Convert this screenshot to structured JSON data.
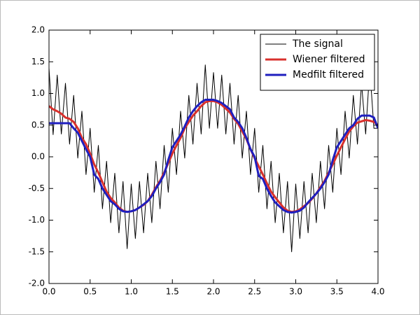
{
  "chart_data": {
    "type": "line",
    "x": [
      0,
      0.05,
      0.1,
      0.15,
      0.2,
      0.25,
      0.3,
      0.35,
      0.4,
      0.45,
      0.5,
      0.55,
      0.6,
      0.65,
      0.7,
      0.75,
      0.8,
      0.85,
      0.9,
      0.95,
      1,
      1.05,
      1.1,
      1.15,
      1.2,
      1.25,
      1.3,
      1.35,
      1.4,
      1.45,
      1.5,
      1.55,
      1.6,
      1.65,
      1.7,
      1.75,
      1.8,
      1.85,
      1.9,
      1.95,
      2,
      2.05,
      2.1,
      2.15,
      2.2,
      2.25,
      2.3,
      2.35,
      2.4,
      2.45,
      2.5,
      2.55,
      2.6,
      2.65,
      2.7,
      2.75,
      2.8,
      2.85,
      2.9,
      2.95,
      3,
      3.05,
      3.1,
      3.15,
      3.2,
      3.25,
      3.3,
      3.35,
      3.4,
      3.45,
      3.5,
      3.55,
      3.6,
      3.65,
      3.7,
      3.75,
      3.8,
      3.85,
      3.9,
      3.95,
      4
    ],
    "series": [
      {
        "name": "The signal",
        "color": "#000000",
        "width": 1,
        "values": [
          1.4,
          0.35,
          1.29,
          0.36,
          1.16,
          0.2,
          0.97,
          -0.02,
          0.72,
          -0.28,
          0.45,
          -0.56,
          0.18,
          -0.82,
          -0.07,
          -1.04,
          -0.26,
          -1.2,
          -0.39,
          -1.45,
          -0.43,
          -1.29,
          -0.39,
          -1.2,
          -0.26,
          -1.04,
          -0.07,
          -0.82,
          0.18,
          -0.56,
          0.45,
          -0.28,
          0.72,
          -0.02,
          0.97,
          0.2,
          1.16,
          0.36,
          1.45,
          0.45,
          1.33,
          0.45,
          1.29,
          0.36,
          1.16,
          0.2,
          0.97,
          -0.02,
          0.72,
          -0.28,
          0.45,
          -0.56,
          0.18,
          -0.82,
          -0.07,
          -1.04,
          -0.26,
          -1.2,
          -0.39,
          -1.5,
          -0.43,
          -1.29,
          -0.39,
          -1.2,
          -0.26,
          -1.04,
          -0.07,
          -0.82,
          0.18,
          -0.56,
          0.45,
          -0.28,
          0.72,
          -0.02,
          0.97,
          0.2,
          1.16,
          0.36,
          1.4,
          0.45,
          0.45
        ]
      },
      {
        "name": "Wiener filtered",
        "color": "#d9302c",
        "width": 3,
        "values": [
          0.8,
          0.75,
          0.72,
          0.68,
          0.62,
          0.6,
          0.55,
          0.45,
          0.3,
          0.2,
          0.05,
          -0.12,
          -0.25,
          -0.4,
          -0.55,
          -0.65,
          -0.72,
          -0.8,
          -0.85,
          -0.87,
          -0.86,
          -0.84,
          -0.8,
          -0.76,
          -0.7,
          -0.6,
          -0.48,
          -0.38,
          -0.25,
          -0.1,
          0.05,
          0.18,
          0.3,
          0.45,
          0.55,
          0.65,
          0.72,
          0.8,
          0.86,
          0.88,
          0.88,
          0.86,
          0.82,
          0.76,
          0.7,
          0.6,
          0.52,
          0.4,
          0.28,
          0.12,
          -0.02,
          -0.15,
          -0.28,
          -0.42,
          -0.55,
          -0.64,
          -0.72,
          -0.8,
          -0.85,
          -0.87,
          -0.86,
          -0.83,
          -0.78,
          -0.73,
          -0.66,
          -0.58,
          -0.48,
          -0.38,
          -0.25,
          -0.12,
          0.02,
          0.15,
          0.28,
          0.4,
          0.48,
          0.54,
          0.56,
          0.58,
          0.57,
          0.55,
          0.5
        ]
      },
      {
        "name": "Medfilt filtered",
        "color": "#1f1fbf",
        "width": 3,
        "values": [
          0.53,
          0.53,
          0.53,
          0.53,
          0.53,
          0.53,
          0.45,
          0.38,
          0.25,
          0.12,
          0.0,
          -0.28,
          -0.35,
          -0.5,
          -0.6,
          -0.7,
          -0.75,
          -0.82,
          -0.86,
          -0.87,
          -0.86,
          -0.84,
          -0.8,
          -0.75,
          -0.7,
          -0.62,
          -0.5,
          -0.4,
          -0.28,
          -0.05,
          0.15,
          0.25,
          0.35,
          0.48,
          0.62,
          0.72,
          0.8,
          0.86,
          0.9,
          0.9,
          0.9,
          0.88,
          0.85,
          0.8,
          0.75,
          0.62,
          0.55,
          0.45,
          0.3,
          0.12,
          0.0,
          -0.3,
          -0.35,
          -0.5,
          -0.62,
          -0.72,
          -0.78,
          -0.84,
          -0.87,
          -0.88,
          -0.87,
          -0.85,
          -0.8,
          -0.72,
          -0.65,
          -0.58,
          -0.5,
          -0.4,
          -0.28,
          -0.05,
          0.15,
          0.25,
          0.35,
          0.45,
          0.5,
          0.6,
          0.65,
          0.65,
          0.65,
          0.62,
          0.45
        ]
      }
    ],
    "xlim": [
      0,
      4
    ],
    "ylim": [
      -2,
      2
    ],
    "xticks": [
      {
        "value": 0,
        "label": "0.0"
      },
      {
        "value": 0.5,
        "label": "0.5"
      },
      {
        "value": 1,
        "label": "1.0"
      },
      {
        "value": 1.5,
        "label": "1.5"
      },
      {
        "value": 2,
        "label": "2.0"
      },
      {
        "value": 2.5,
        "label": "2.5"
      },
      {
        "value": 3,
        "label": "3.0"
      },
      {
        "value": 3.5,
        "label": "3.5"
      },
      {
        "value": 4,
        "label": "4.0"
      }
    ],
    "yticks": [
      {
        "value": -2,
        "label": "-2.0"
      },
      {
        "value": -1.5,
        "label": "-1.5"
      },
      {
        "value": -1,
        "label": "-1.0"
      },
      {
        "value": -0.5,
        "label": "-0.5"
      },
      {
        "value": 0,
        "label": "0.0"
      },
      {
        "value": 0.5,
        "label": "0.5"
      },
      {
        "value": 1,
        "label": "1.0"
      },
      {
        "value": 1.5,
        "label": "1.5"
      },
      {
        "value": 2,
        "label": "2.0"
      }
    ],
    "grid": false,
    "legend": "upper right"
  }
}
